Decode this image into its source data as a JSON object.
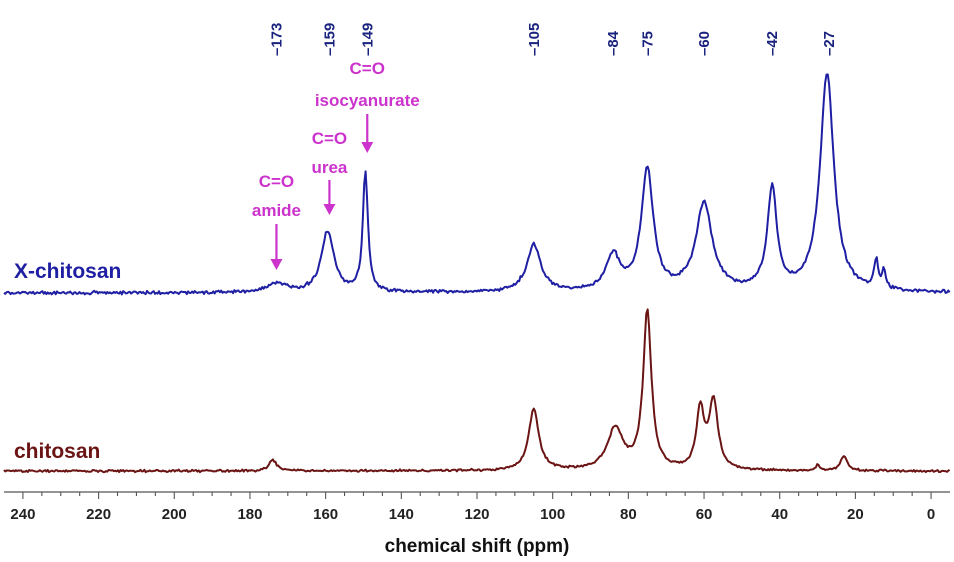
{
  "chart_data": {
    "type": "line",
    "title": "",
    "xlabel": "chemical shift (ppm)",
    "ylabel": "",
    "xlim": [
      245,
      -5
    ],
    "x_ticks": [
      240,
      220,
      200,
      180,
      160,
      140,
      120,
      100,
      80,
      60,
      40,
      20,
      0
    ],
    "x_reversed": true,
    "grid": false,
    "peak_labels": [
      "173",
      "159",
      "149",
      "105",
      "84",
      "75",
      "60",
      "42",
      "27"
    ],
    "peak_positions": [
      173,
      159,
      149,
      105,
      84,
      75,
      60,
      42,
      27
    ],
    "annotations": [
      {
        "lines": [
          "C=O",
          "amide"
        ],
        "x": 173
      },
      {
        "lines": [
          "C=O",
          "urea"
        ],
        "x": 159
      },
      {
        "lines": [
          "C=O",
          "isocyanurate"
        ],
        "x": 149
      }
    ],
    "series": [
      {
        "name": "X-chitosan",
        "color": "#1f1fa3",
        "baseline": 0,
        "peaks": [
          {
            "x": 173,
            "h": 0.04,
            "w": 3.0
          },
          {
            "x": 159.5,
            "h": 0.28,
            "w": 2.0
          },
          {
            "x": 149.5,
            "h": 0.55,
            "w": 0.8
          },
          {
            "x": 105,
            "h": 0.22,
            "w": 2.2
          },
          {
            "x": 84,
            "h": 0.16,
            "w": 2.2
          },
          {
            "x": 75,
            "h": 0.56,
            "w": 1.9
          },
          {
            "x": 60,
            "h": 0.4,
            "w": 2.6
          },
          {
            "x": 42,
            "h": 0.47,
            "w": 1.5
          },
          {
            "x": 27.5,
            "h": 1.0,
            "w": 2.2
          },
          {
            "x": 14.5,
            "h": 0.13,
            "w": 0.6
          },
          {
            "x": 12.5,
            "h": 0.09,
            "w": 0.6
          }
        ]
      },
      {
        "name": "chitosan",
        "color": "#6b1414",
        "baseline": 0,
        "peaks": [
          {
            "x": 174,
            "h": 0.06,
            "w": 1.2
          },
          {
            "x": 105,
            "h": 0.34,
            "w": 1.6
          },
          {
            "x": 83.5,
            "h": 0.23,
            "w": 2.5
          },
          {
            "x": 75,
            "h": 0.88,
            "w": 1.3
          },
          {
            "x": 61,
            "h": 0.33,
            "w": 1.2
          },
          {
            "x": 57.5,
            "h": 0.38,
            "w": 1.4
          },
          {
            "x": 30,
            "h": 0.03,
            "w": 0.5
          },
          {
            "x": 23,
            "h": 0.08,
            "w": 1.1
          }
        ]
      }
    ]
  }
}
